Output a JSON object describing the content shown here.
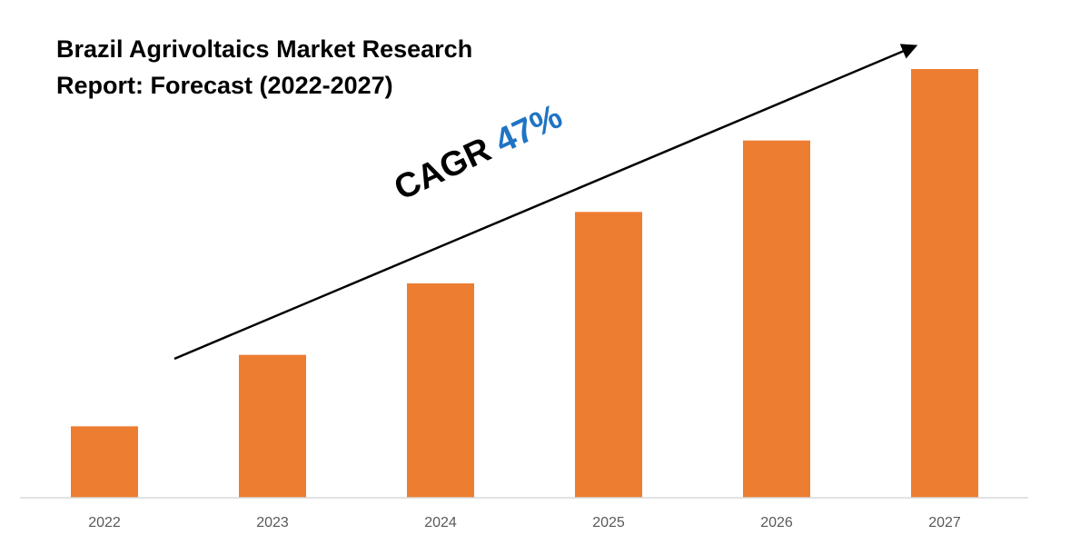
{
  "chart_data": {
    "type": "bar",
    "title_lines": [
      "Brazil Agrivoltaics Market Research",
      "Report: Forecast (2022-2027)"
    ],
    "categories": [
      "2022",
      "2023",
      "2024",
      "2025",
      "2026",
      "2027"
    ],
    "values": [
      1,
      2,
      3,
      4,
      5,
      6
    ],
    "ylim": [
      0,
      6.1
    ],
    "ylabel": "",
    "xlabel": "",
    "grid": false,
    "legend": "none",
    "bar_color": "#ed7d31",
    "annotation": {
      "label": "CAGR",
      "value": "47%",
      "label_color": "#000000",
      "value_color": "#1f74c4",
      "arrow": "diagonal trend arrow rising to the right"
    }
  }
}
